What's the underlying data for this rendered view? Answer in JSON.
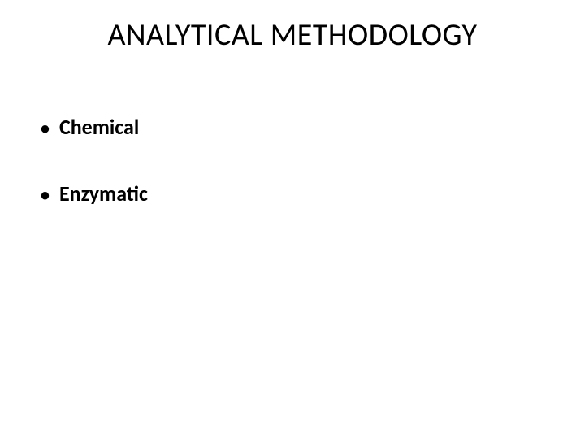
{
  "slide": {
    "title": "ANALYTICAL METHODOLOGY",
    "title_fontsize": 38,
    "title_fontweight": 400,
    "title_color": "#000000",
    "background_color": "#ffffff"
  },
  "bullets": [
    {
      "marker": "•",
      "text": "Chemical"
    },
    {
      "marker": "•",
      "text": "Enzymatic"
    }
  ],
  "bullet_style": {
    "fontsize": 26,
    "fontweight": 700,
    "color": "#000000",
    "marker_color": "#000000",
    "spacing_between": 50
  }
}
